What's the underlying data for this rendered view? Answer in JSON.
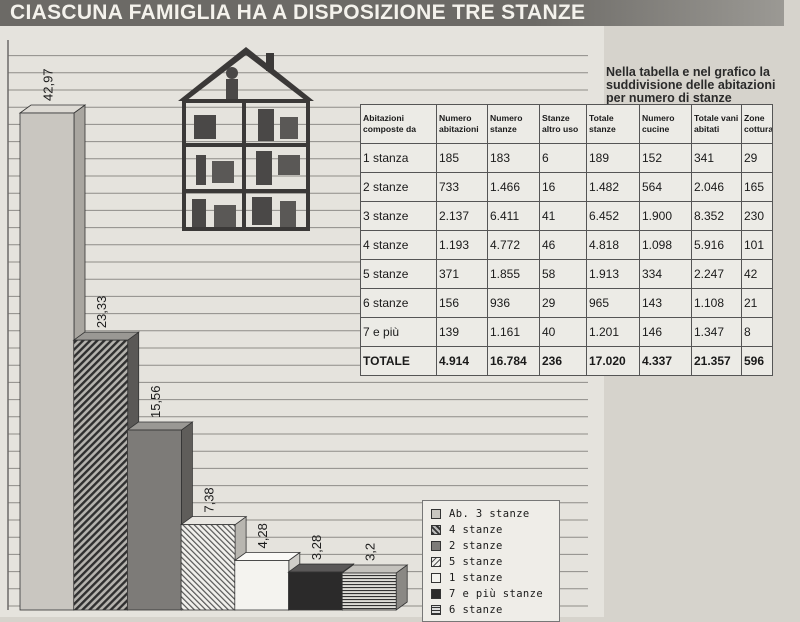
{
  "title": "CIASCUNA FAMIGLIA HA A DISPOSIZIONE TRE STANZE",
  "caption": [
    "Nella tabella e nel grafico la",
    "suddivisione delle abitazioni",
    "per numero di stanze"
  ],
  "table": {
    "headers": [
      "Abitazioni composte da",
      "Numero abitazioni",
      "Numero stanze",
      "Stanze altro uso",
      "Totale stanze",
      "Numero cucine",
      "Totale vani abitati",
      "Zone cottura"
    ],
    "rows": [
      [
        "1 stanza",
        "185",
        "183",
        "6",
        "189",
        "152",
        "341",
        "29"
      ],
      [
        "2 stanze",
        "733",
        "1.466",
        "16",
        "1.482",
        "564",
        "2.046",
        "165"
      ],
      [
        "3 stanze",
        "2.137",
        "6.411",
        "41",
        "6.452",
        "1.900",
        "8.352",
        "230"
      ],
      [
        "4 stanze",
        "1.193",
        "4.772",
        "46",
        "4.818",
        "1.098",
        "5.916",
        "101"
      ],
      [
        "5 stanze",
        "371",
        "1.855",
        "58",
        "1.913",
        "334",
        "2.247",
        "42"
      ],
      [
        "6 stanze",
        "156",
        "936",
        "29",
        "965",
        "143",
        "1.108",
        "21"
      ],
      [
        "7 e più",
        "139",
        "1.161",
        "40",
        "1.201",
        "146",
        "1.347",
        "8"
      ],
      [
        "TOTALE",
        "4.914",
        "16.784",
        "236",
        "17.020",
        "4.337",
        "21.357",
        "596"
      ]
    ]
  },
  "legend": [
    {
      "label": "Ab. 3 stanze",
      "pattern": "solid-light"
    },
    {
      "label": "4 stanze",
      "pattern": "xhatch"
    },
    {
      "label": "2 stanze",
      "pattern": "solid-mid"
    },
    {
      "label": "5 stanze",
      "pattern": "whatch"
    },
    {
      "label": "1 stanze",
      "pattern": "white"
    },
    {
      "label": "7 e più stanze",
      "pattern": "black"
    },
    {
      "label": "6 stanze",
      "pattern": "hlines"
    }
  ],
  "chart_data": {
    "type": "bar",
    "title": "",
    "xlabel": "",
    "ylabel": "",
    "categories": [
      "3 stanze",
      "4 stanze",
      "2 stanze",
      "5 stanze",
      "1 stanze",
      "7 e più stanze",
      "6 stanze"
    ],
    "values": [
      42.97,
      23.33,
      15.56,
      7.38,
      4.28,
      3.28,
      3.2
    ],
    "value_labels": [
      "42,97",
      "23,33",
      "15,56",
      "7,38",
      "4,28",
      "3,28",
      "3,2"
    ],
    "ylim": [
      0,
      42.97
    ],
    "grid": true,
    "legend_position": "bottom-right",
    "colors": {
      "3 stanze": "#c9c6c0",
      "4 stanze": "#3a3a3a",
      "2 stanze": "#7d7b78",
      "5 stanze": "#555555",
      "1 stanze": "#f4f3ef",
      "7 e più stanze": "#2b2a2a",
      "6 stanze": "#333333"
    }
  },
  "illustration": {
    "icon": "house-cutaway-icon"
  }
}
